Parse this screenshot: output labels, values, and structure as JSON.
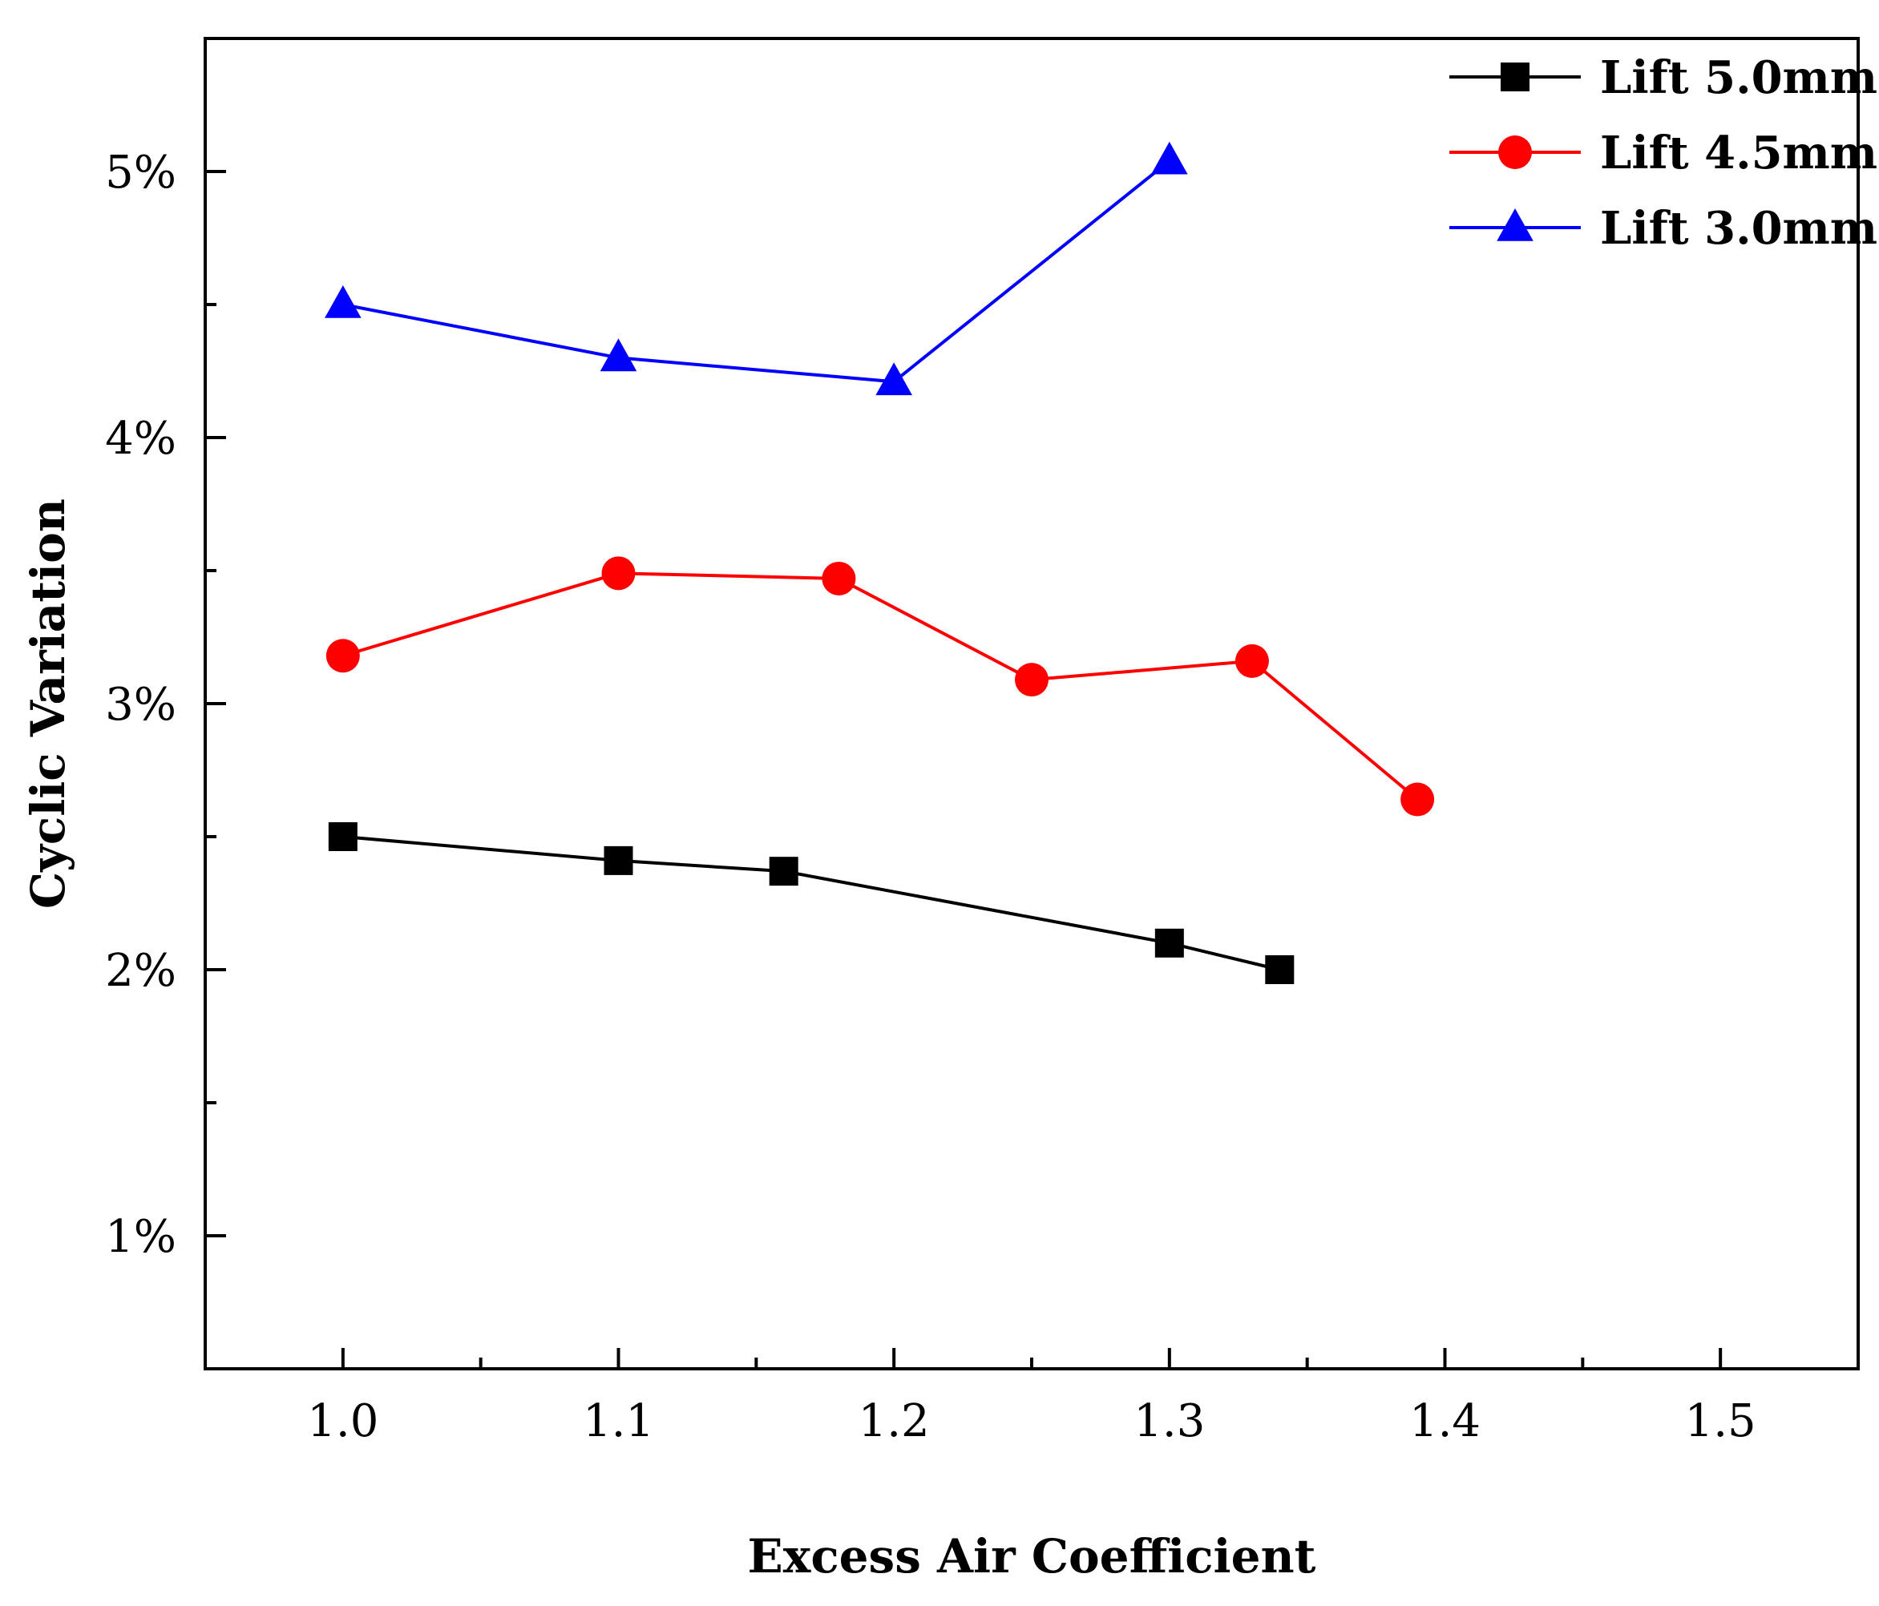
{
  "chart_data": {
    "type": "line",
    "title": "",
    "xlabel": "Excess Air Coefficient",
    "ylabel": "Cyclic Variation",
    "xlim": [
      0.95,
      1.55
    ],
    "ylim": [
      0.5,
      5.5
    ],
    "x_ticks": [
      1.0,
      1.1,
      1.2,
      1.3,
      1.4,
      1.5
    ],
    "x_tick_labels": [
      "1.0",
      "1.1",
      "1.2",
      "1.3",
      "1.4",
      "1.5"
    ],
    "x_minor_ticks": [
      1.05,
      1.15,
      1.25,
      1.35,
      1.45
    ],
    "y_ticks": [
      1,
      2,
      3,
      4,
      5
    ],
    "y_tick_labels": [
      "1%",
      "2%",
      "3%",
      "4%",
      "5%"
    ],
    "y_minor_ticks": [
      1.5,
      2.5,
      3.5,
      4.5
    ],
    "grid": false,
    "legend_position": "top-right",
    "series": [
      {
        "name": "Lift 5.0mm",
        "color": "#000000",
        "marker": "square",
        "x": [
          1.0,
          1.1,
          1.16,
          1.3,
          1.34
        ],
        "y": [
          2.5,
          2.41,
          2.37,
          2.1,
          2.0
        ]
      },
      {
        "name": "Lift 4.5mm",
        "color": "#ff0000",
        "marker": "circle",
        "x": [
          1.0,
          1.1,
          1.18,
          1.25,
          1.33,
          1.39
        ],
        "y": [
          3.18,
          3.49,
          3.47,
          3.09,
          3.16,
          2.64
        ]
      },
      {
        "name": "Lift 3.0mm",
        "color": "#0000ff",
        "marker": "triangle",
        "x": [
          1.0,
          1.1,
          1.2,
          1.3
        ],
        "y": [
          4.5,
          4.3,
          4.21,
          5.04
        ]
      }
    ]
  }
}
